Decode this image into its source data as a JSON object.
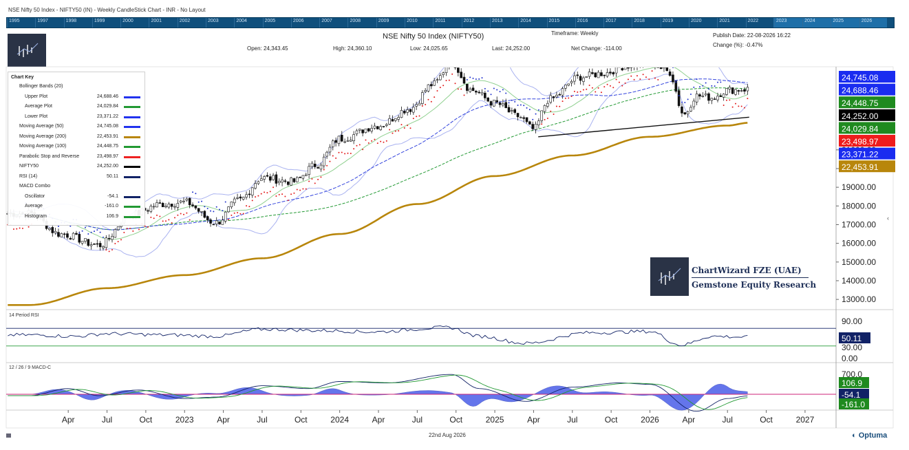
{
  "window": {
    "title": "NSE Nifty 50 Index - NIFTY50 (IN) - Weekly CandleStick Chart - INR - No Layout"
  },
  "timeline": {
    "years": [
      "1995",
      "1997",
      "1998",
      "1999",
      "2000",
      "2001",
      "2002",
      "2003",
      "2004",
      "2005",
      "2006",
      "2007",
      "2008",
      "2009",
      "2010",
      "2011",
      "2012",
      "2013",
      "2014",
      "2015",
      "2016",
      "2017",
      "2018",
      "2019",
      "2020",
      "2021",
      "2022",
      "2023",
      "2024",
      "2025",
      "2026"
    ]
  },
  "header": {
    "title": "NSE Nifty 50 Index (NIFTY50)",
    "timeframe": "Timeframe: Weekly",
    "publish_date": "Publish Date: 22-08-2026 16:22",
    "change_pct": "Change (%): -0.47%",
    "open": "Open: 24,343.45",
    "high": "High: 24,360.10",
    "low": "Low: 24,025.65",
    "last": "Last: 24,252.00",
    "net_change": "Net Change: -114.00"
  },
  "chart_key": {
    "title": "Chart Key",
    "rows": [
      {
        "name": "Bollinger Bands (20)",
        "value": "",
        "color": "",
        "indent": false
      },
      {
        "name": "Upper Plot",
        "value": "24,688.46",
        "color": "#2233ee",
        "indent": true
      },
      {
        "name": "Average Plot",
        "value": "24,029.84",
        "color": "#229933",
        "indent": true
      },
      {
        "name": "Lower Plot",
        "value": "23,371.22",
        "color": "#2233ee",
        "indent": true
      },
      {
        "name": "Moving Average (50)",
        "value": "24,745.08",
        "color": "#2233ee",
        "indent": false
      },
      {
        "name": "Moving Average (200)",
        "value": "22,453.91",
        "color": "#b8860b",
        "indent": false
      },
      {
        "name": "Moving Average (100)",
        "value": "24,448.75",
        "color": "#229933",
        "indent": false
      },
      {
        "name": "Parabolic Stop and Reverse",
        "value": "23,498.97",
        "color": "#ee2222",
        "indent": false
      },
      {
        "name": "NIFTY50",
        "value": "24,252.00",
        "color": "#000000",
        "indent": false
      },
      {
        "name": "RSI (14)",
        "value": "50.11",
        "color": "#112266",
        "indent": false
      },
      {
        "name": "MACD Combo",
        "value": "",
        "color": "",
        "indent": false
      },
      {
        "name": "Oscillator",
        "value": "-54.1",
        "color": "#112266",
        "indent": true
      },
      {
        "name": "Average",
        "value": "-161.0",
        "color": "#229933",
        "indent": true
      },
      {
        "name": "Histogram",
        "value": "106.9",
        "color": "#229933",
        "indent": true
      }
    ]
  },
  "watermark": {
    "line1": "ChartWizard FZE (UAE)",
    "line2": "Gemstone Equity Research"
  },
  "footer": {
    "date": "22nd Aug 2026",
    "brand": "Optuma"
  },
  "chart_data": [
    {
      "type": "candlestick",
      "title": "NSE Nifty 50 Index (NIFTY50)",
      "x_ticks": [
        "Apr",
        "Jul",
        "Oct",
        "2023",
        "Apr",
        "Jul",
        "Oct",
        "2024",
        "Apr",
        "Jul",
        "Oct",
        "2025",
        "Apr",
        "Jul",
        "Oct",
        "2026",
        "Apr",
        "Jul",
        "Oct",
        "2027"
      ],
      "y_ticks": [
        "13000.00",
        "14000.00",
        "15000.00",
        "16000.00",
        "17000.00",
        "18000.00",
        "19000.00",
        "20000.00",
        "21000.00"
      ],
      "ylim": [
        12600,
        25300
      ],
      "value_badges": [
        {
          "label": "24,745.08",
          "value": 24745.08,
          "color": "#1a2cf0",
          "text_color": "#ffffff"
        },
        {
          "label": "24,688.46",
          "value": 24688.46,
          "color": "#1a2cf0",
          "text_color": "#ffffff"
        },
        {
          "label": "24,448.75",
          "value": 24448.75,
          "color": "#1f8a1f",
          "text_color": "#ffffff"
        },
        {
          "label": "24,252.00",
          "value": 24252.0,
          "color": "#000000",
          "text_color": "#ffffff"
        },
        {
          "label": "24,029.84",
          "value": 24029.84,
          "color": "#1f8a1f",
          "text_color": "#ffffff"
        },
        {
          "label": "23,498.97",
          "value": 23498.97,
          "color": "#ee1c1c",
          "text_color": "#ffffff"
        },
        {
          "label": "23,371.22",
          "value": 23371.22,
          "color": "#1a2cf0",
          "text_color": "#ffffff"
        },
        {
          "label": "22,453.91",
          "value": 22453.91,
          "color": "#b8860b",
          "text_color": "#ffffff"
        }
      ],
      "moving_average_200_anchors": [
        [
          2022.0,
          12700
        ],
        [
          2022.5,
          13600
        ],
        [
          2023.0,
          14300
        ],
        [
          2023.5,
          15200
        ],
        [
          2024.0,
          16500
        ],
        [
          2024.5,
          18100
        ],
        [
          2025.0,
          19600
        ],
        [
          2025.5,
          20700
        ],
        [
          2026.0,
          21700
        ],
        [
          2026.5,
          22300
        ],
        [
          2026.64,
          22453.91
        ]
      ],
      "close_anchors": [
        [
          2022.0,
          17600
        ],
        [
          2022.2,
          16500
        ],
        [
          2022.45,
          15900
        ],
        [
          2022.65,
          17500
        ],
        [
          2022.85,
          18100
        ],
        [
          2023.0,
          18200
        ],
        [
          2023.2,
          17100
        ],
        [
          2023.35,
          18300
        ],
        [
          2023.5,
          19500
        ],
        [
          2023.7,
          19300
        ],
        [
          2023.85,
          20200
        ],
        [
          2024.0,
          21600
        ],
        [
          2024.25,
          22300
        ],
        [
          2024.45,
          23200
        ],
        [
          2024.6,
          24500
        ],
        [
          2024.72,
          25700
        ],
        [
          2024.85,
          24200
        ],
        [
          2025.0,
          23500
        ],
        [
          2025.15,
          22800
        ],
        [
          2025.25,
          22100
        ],
        [
          2025.35,
          23700
        ],
        [
          2025.55,
          24900
        ],
        [
          2025.7,
          25100
        ],
        [
          2025.85,
          25500
        ],
        [
          2026.0,
          25700
        ],
        [
          2026.12,
          25200
        ],
        [
          2026.22,
          22900
        ],
        [
          2026.3,
          23900
        ],
        [
          2026.4,
          23800
        ],
        [
          2026.5,
          24200
        ],
        [
          2026.64,
          24252
        ]
      ],
      "channel": {
        "upper": [
          [
            2024.72,
            25950
          ],
          [
            2026.64,
            25950
          ]
        ],
        "lower": [
          [
            2025.28,
            21700
          ],
          [
            2026.64,
            22750
          ]
        ]
      }
    },
    {
      "type": "line",
      "title": "14 Period RSI",
      "y_ticks": [
        "90.00",
        "50.11",
        "30.00",
        "0.00"
      ],
      "ylim": [
        0,
        100
      ],
      "levels": [
        70,
        30
      ],
      "current": 50.11,
      "anchors": [
        [
          2022.0,
          55
        ],
        [
          2022.3,
          52
        ],
        [
          2022.5,
          58
        ],
        [
          2022.9,
          55
        ],
        [
          2023.2,
          52
        ],
        [
          2023.5,
          68
        ],
        [
          2023.9,
          65
        ],
        [
          2024.2,
          62
        ],
        [
          2024.7,
          72
        ],
        [
          2024.9,
          52
        ],
        [
          2025.2,
          36
        ],
        [
          2025.6,
          60
        ],
        [
          2026.0,
          63
        ],
        [
          2026.2,
          32
        ],
        [
          2026.4,
          52
        ],
        [
          2026.64,
          50.11
        ]
      ]
    },
    {
      "type": "line",
      "title": "12 / 26 / 9 MACD-C",
      "y_ticks": [
        "700.0"
      ],
      "series": [
        {
          "name": "Oscillator",
          "current": -54.1
        },
        {
          "name": "Average",
          "current": -161.0
        },
        {
          "name": "Histogram",
          "current": 106.9
        }
      ],
      "value_badges": [
        {
          "label": "106.9",
          "value": 106.9,
          "color": "#1f8a1f"
        },
        {
          "label": "-54.1",
          "value": -54.1,
          "color": "#112266"
        },
        {
          "label": "-161.0",
          "value": -161.0,
          "color": "#1f8a1f"
        }
      ],
      "oscillator_anchors": [
        [
          2022.0,
          -50
        ],
        [
          2022.25,
          200
        ],
        [
          2022.45,
          -50
        ],
        [
          2022.7,
          150
        ],
        [
          2023.0,
          -150
        ],
        [
          2023.2,
          -100
        ],
        [
          2023.5,
          300
        ],
        [
          2023.8,
          200
        ],
        [
          2024.0,
          450
        ],
        [
          2024.3,
          400
        ],
        [
          2024.72,
          700
        ],
        [
          2024.9,
          200
        ],
        [
          2025.2,
          -250
        ],
        [
          2025.5,
          250
        ],
        [
          2025.8,
          400
        ],
        [
          2026.0,
          350
        ],
        [
          2026.3,
          -600
        ],
        [
          2026.5,
          -150
        ],
        [
          2026.64,
          -54.1
        ]
      ]
    }
  ]
}
